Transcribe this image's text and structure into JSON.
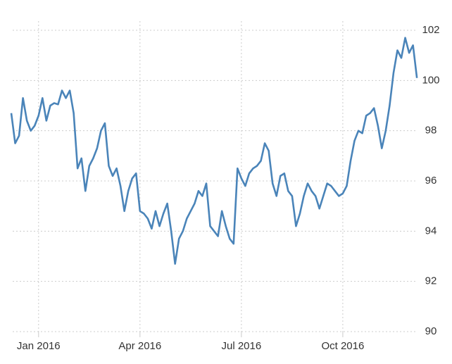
{
  "chart_data": {
    "type": "line",
    "categories": [
      null,
      null,
      null,
      null,
      null,
      null,
      null,
      "Jan 2016",
      null,
      null,
      null,
      null,
      null,
      null,
      null,
      null,
      null,
      null,
      null,
      null,
      null,
      null,
      null,
      null,
      null,
      null,
      null,
      null,
      null,
      null,
      null,
      null,
      null,
      "Apr 2016",
      null,
      null,
      null,
      null,
      null,
      null,
      null,
      null,
      null,
      null,
      null,
      null,
      null,
      null,
      null,
      null,
      null,
      null,
      null,
      null,
      null,
      null,
      null,
      null,
      null,
      "Jul 2016",
      null,
      null,
      null,
      null,
      null,
      null,
      null,
      null,
      null,
      null,
      null,
      null,
      null,
      null,
      null,
      null,
      null,
      null,
      null,
      null,
      null,
      null,
      null,
      null,
      null,
      "Oct 2016",
      null,
      null,
      null,
      null,
      null,
      null,
      null,
      null,
      null,
      null,
      null,
      null,
      null,
      null,
      null,
      null,
      null,
      null,
      null
    ],
    "values": [
      98.7,
      97.5,
      97.8,
      99.3,
      98.4,
      98.0,
      98.2,
      98.6,
      99.3,
      98.4,
      99.0,
      99.1,
      99.05,
      99.6,
      99.3,
      99.6,
      98.7,
      96.5,
      96.9,
      95.6,
      96.6,
      96.9,
      97.3,
      98.0,
      98.3,
      96.6,
      96.2,
      96.5,
      95.8,
      94.8,
      95.6,
      96.1,
      96.3,
      94.8,
      94.7,
      94.5,
      94.1,
      94.8,
      94.2,
      94.7,
      95.1,
      94.0,
      92.7,
      93.7,
      94.0,
      94.5,
      94.8,
      95.1,
      95.6,
      95.4,
      95.9,
      94.2,
      94.0,
      93.8,
      94.8,
      94.2,
      93.7,
      93.5,
      96.5,
      96.1,
      95.8,
      96.3,
      96.5,
      96.6,
      96.8,
      97.5,
      97.2,
      95.9,
      95.4,
      96.2,
      96.3,
      95.6,
      95.4,
      94.2,
      94.7,
      95.4,
      95.9,
      95.6,
      95.4,
      94.9,
      95.4,
      95.9,
      95.8,
      95.6,
      95.4,
      95.5,
      95.8,
      96.8,
      97.6,
      98.0,
      97.9,
      98.6,
      98.7,
      98.9,
      98.2,
      97.3,
      98.0,
      99.0,
      100.3,
      101.2,
      100.9,
      101.7,
      101.1,
      101.4,
      100.1
    ],
    "color": "#4a84b9",
    "ylim": [
      90,
      102
    ],
    "yticks": [
      90,
      92,
      94,
      96,
      98,
      100,
      102
    ],
    "grid": true
  }
}
